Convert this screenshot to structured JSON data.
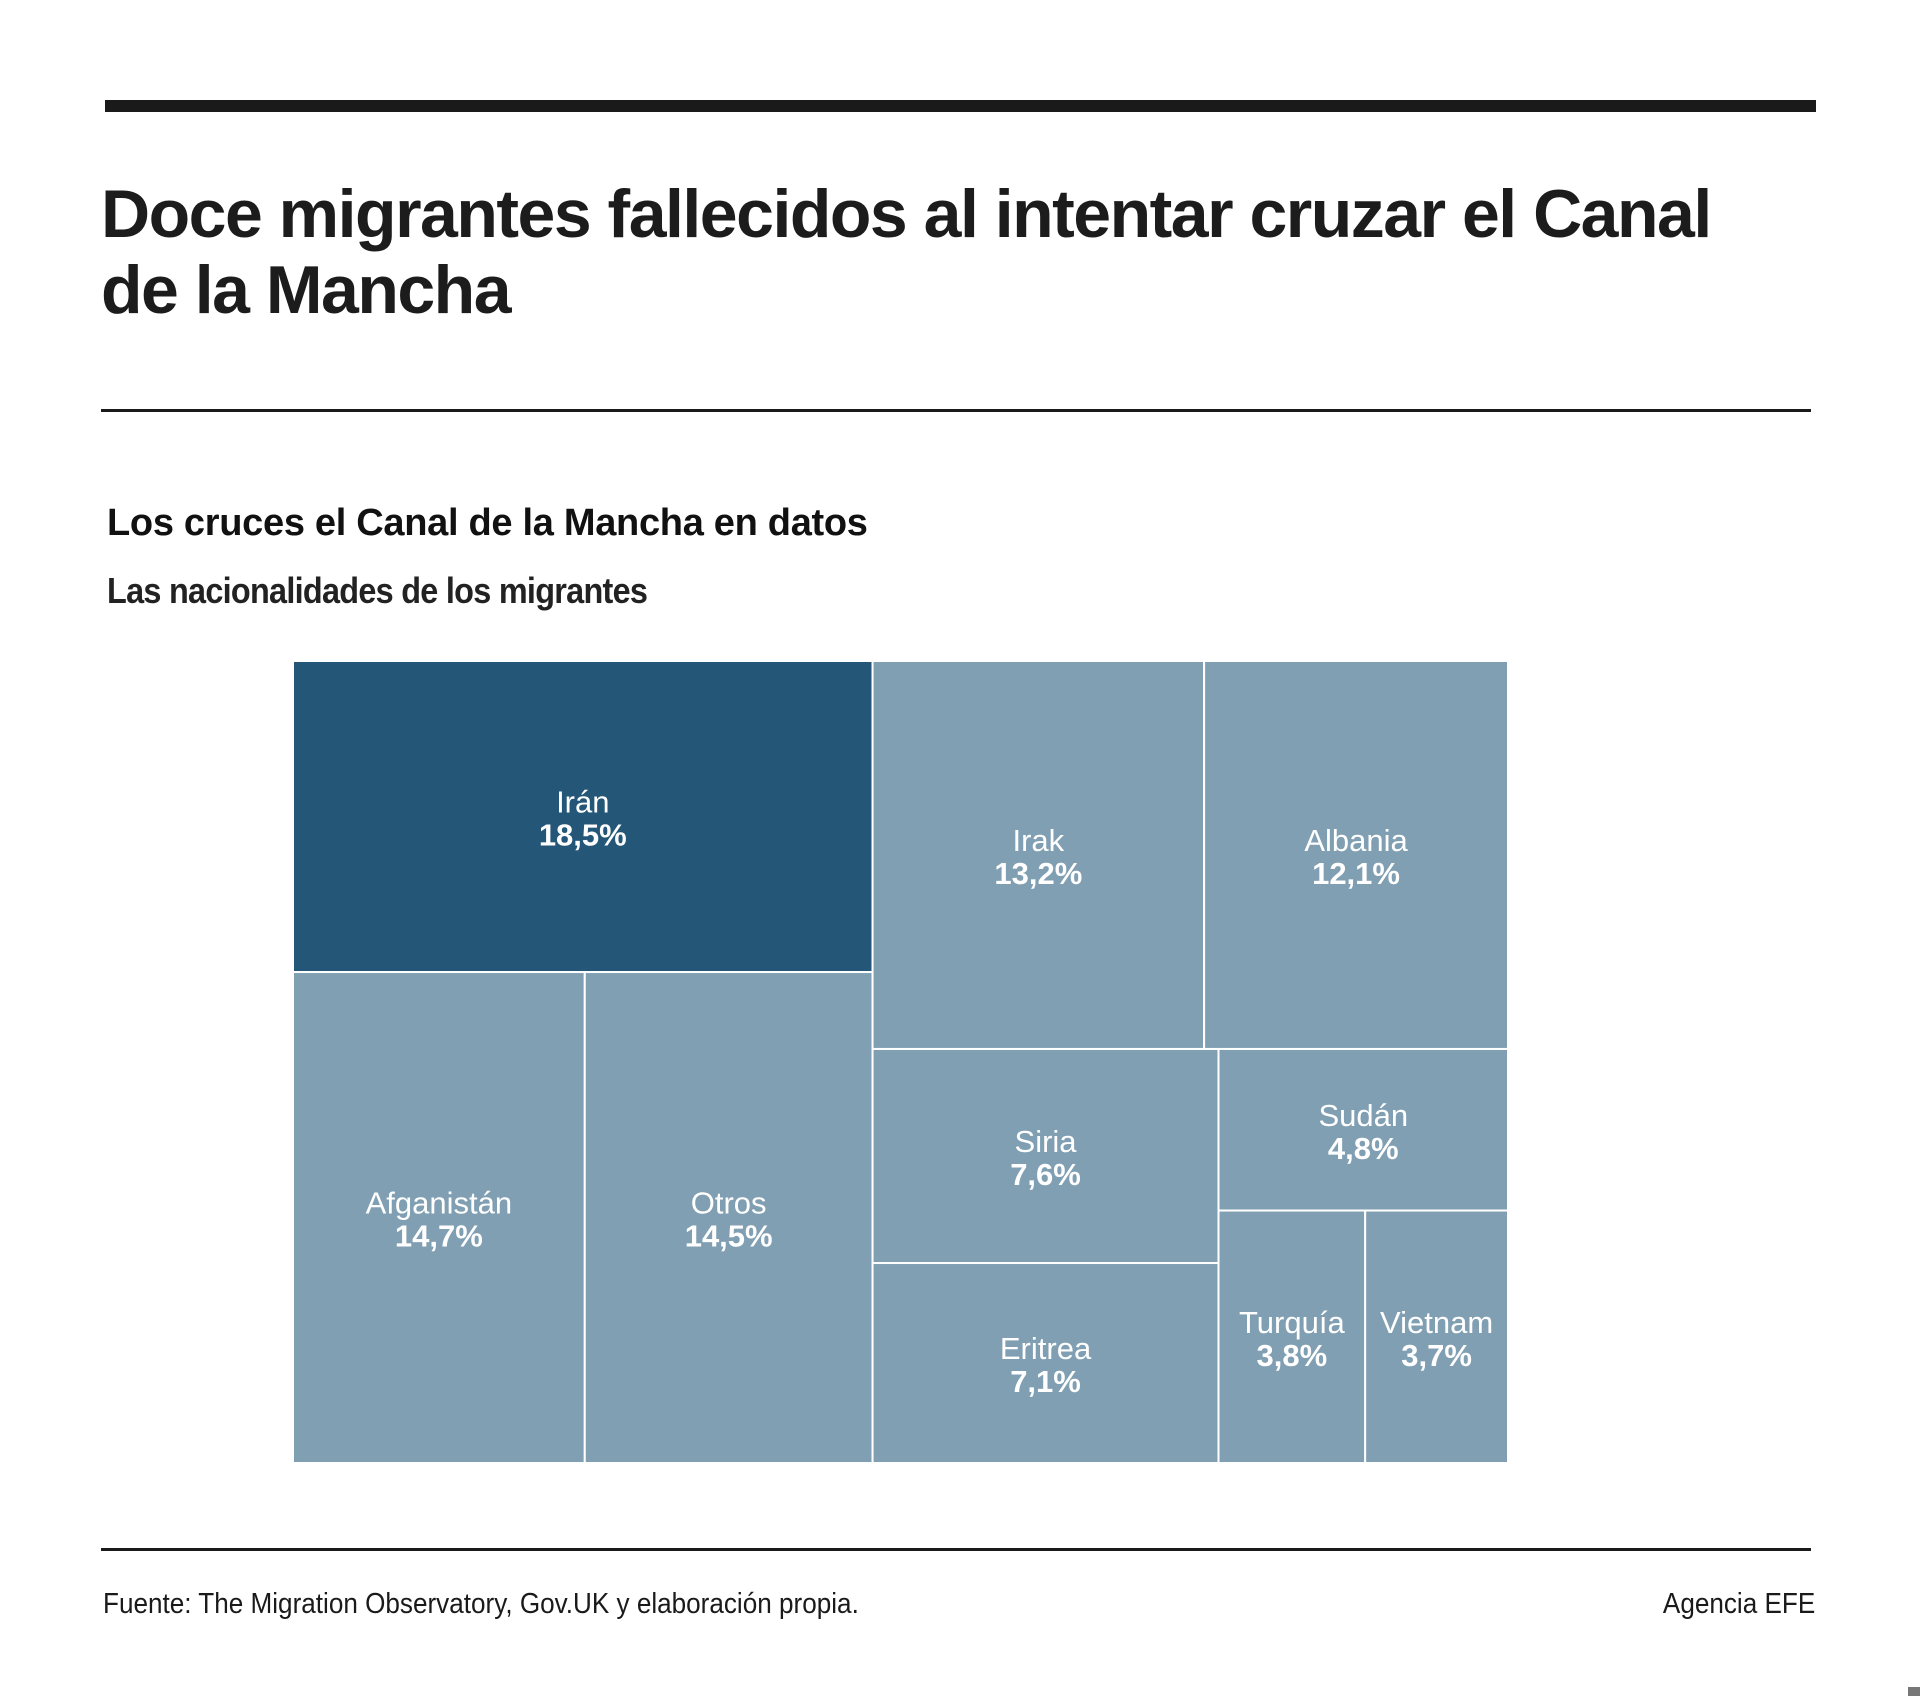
{
  "header": {
    "headline": "Doce migrantes fallecidos al intentar cruzar el Canal de la Mancha"
  },
  "chart_data": {
    "type": "treemap",
    "title": "Los cruces el Canal de la Mancha en datos",
    "subtitle": "Las nacionalidades de los migrantes",
    "unit": "%",
    "colors": {
      "highlight": "#245678",
      "default": "#809fb3",
      "label": "#ffffff",
      "border": "#ffffff"
    },
    "items": [
      {
        "name": "Irán",
        "value": 18.5,
        "label": "18,5%",
        "highlight": true
      },
      {
        "name": "Afganistán",
        "value": 14.7,
        "label": "14,7%",
        "highlight": false
      },
      {
        "name": "Otros",
        "value": 14.5,
        "label": "14,5%",
        "highlight": false
      },
      {
        "name": "Irak",
        "value": 13.2,
        "label": "13,2%",
        "highlight": false
      },
      {
        "name": "Albania",
        "value": 12.1,
        "label": "12,1%",
        "highlight": false
      },
      {
        "name": "Siria",
        "value": 7.6,
        "label": "7,6%",
        "highlight": false
      },
      {
        "name": "Eritrea",
        "value": 7.1,
        "label": "7,1%",
        "highlight": false
      },
      {
        "name": "Sudán",
        "value": 4.8,
        "label": "4,8%",
        "highlight": false
      },
      {
        "name": "Turquía",
        "value": 3.8,
        "label": "3,8%",
        "highlight": false
      },
      {
        "name": "Vietnam",
        "value": 3.7,
        "label": "3,7%",
        "highlight": false
      }
    ]
  },
  "footer": {
    "source": "Fuente: The Migration Observatory, Gov.UK y elaboración propia.",
    "credit": "Agencia EFE"
  }
}
